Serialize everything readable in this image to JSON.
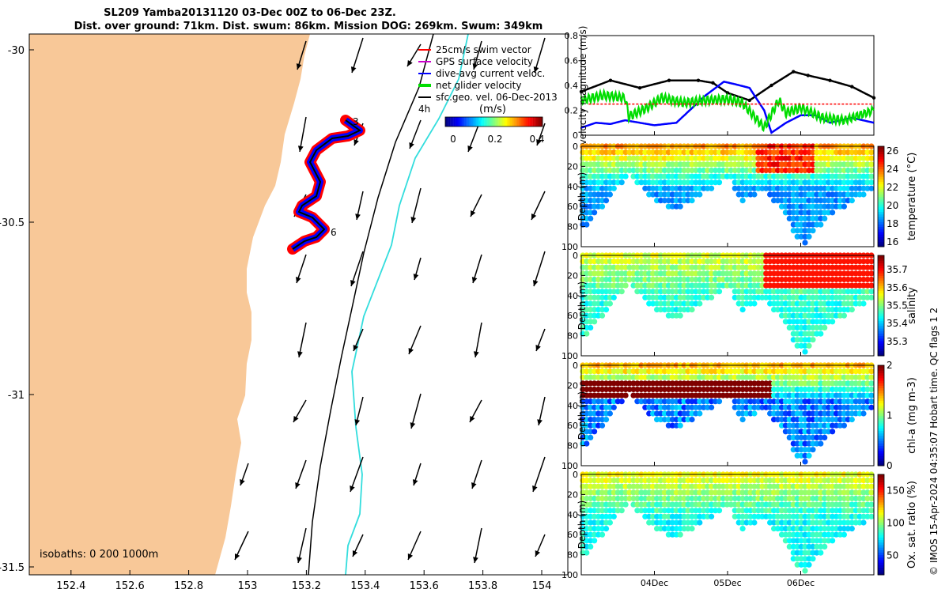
{
  "title_line1": "SL209 Yamba20131120 03-Dec 00Z to 06-Dec 23Z.",
  "title_line2": "Dist. over ground: 71km. Dist. swum: 86km. Mission DOG: 269km. Swum: 349km",
  "map": {
    "lon_ticks": [
      "152.4",
      "152.6",
      "152.8",
      "153",
      "153.2",
      "153.4",
      "153.6",
      "153.8",
      "154"
    ],
    "lat_ticks": [
      "-30",
      "-30.5",
      "-31",
      "-31.5"
    ],
    "legend": [
      "25cm/s swim vector",
      "GPS surface velocity",
      "dive-avg current veloc.",
      "net glider velocity",
      "sfc.geo. vel. 06-Dec-2013"
    ],
    "legend_colors": [
      "#ff0000",
      "#cc00cc",
      "#0000ff",
      "#00dd00",
      "#000000"
    ],
    "time_label": "4h",
    "colorbar_title": "(m/s)",
    "colorbar_ticks": [
      "0",
      "0.2",
      "0.4"
    ],
    "isobaths": "isobaths: 0   200  1000m",
    "track_labels": [
      "3",
      "6"
    ],
    "land_color": "#f8c898"
  },
  "chart_data": [
    {
      "type": "line",
      "title": "",
      "ylabel": "velocity magnitude (m/s)",
      "ylim": [
        0,
        0.8
      ],
      "yticks": [
        "0",
        "0.2",
        "0.4",
        "0.6",
        "0.8"
      ],
      "x_range_days": [
        3.0,
        7.0
      ],
      "series": [
        {
          "color": "#000000",
          "x": [
            3.0,
            3.4,
            3.8,
            4.2,
            4.6,
            4.8,
            5.0,
            5.3,
            5.6,
            5.9,
            6.1,
            6.4,
            6.7,
            7.0
          ],
          "values": [
            0.35,
            0.44,
            0.38,
            0.44,
            0.44,
            0.42,
            0.34,
            0.28,
            0.4,
            0.51,
            0.48,
            0.44,
            0.39,
            0.3
          ]
        },
        {
          "color": "#0000ff",
          "x": [
            3.0,
            3.2,
            3.4,
            3.6,
            3.8,
            4.0,
            4.3,
            4.7,
            4.95,
            5.1,
            5.3,
            5.5,
            5.6,
            5.8,
            6.0,
            6.2,
            6.4,
            6.7,
            7.0
          ],
          "values": [
            0.06,
            0.1,
            0.09,
            0.12,
            0.1,
            0.08,
            0.1,
            0.32,
            0.43,
            0.41,
            0.38,
            0.2,
            0.02,
            0.1,
            0.16,
            0.16,
            0.1,
            0.14,
            0.1
          ]
        },
        {
          "color": "#00dd00",
          "x": [
            3.0,
            3.3,
            3.6,
            3.65,
            3.9,
            4.1,
            4.4,
            4.7,
            5.0,
            5.2,
            5.5,
            5.7,
            5.8,
            6.0,
            6.3,
            6.6,
            7.0
          ],
          "values": [
            0.28,
            0.32,
            0.3,
            0.15,
            0.22,
            0.3,
            0.26,
            0.28,
            0.29,
            0.26,
            0.06,
            0.28,
            0.18,
            0.22,
            0.14,
            0.12,
            0.2
          ]
        },
        {
          "color": "#ff0000",
          "x": [
            3.1,
            7.0
          ],
          "values": [
            0.25,
            0.25
          ]
        }
      ],
      "x_tick_labels": [
        "04Dec",
        "05Dec",
        "06Dec"
      ]
    },
    {
      "type": "heatmap",
      "ylabel": "Depth (m)",
      "ylim": [
        100,
        0
      ],
      "yticks": [
        "0",
        "20",
        "40",
        "60",
        "80",
        "100"
      ],
      "colorbar_label": "temperature (°C)",
      "colorbar_ticks": [
        "16",
        "18",
        "20",
        "22",
        "24",
        "26"
      ],
      "clim": [
        15.5,
        26.5
      ],
      "surface_value": 23.5,
      "deep_value": 18.5,
      "x_tick_labels": [
        "04Dec",
        "05Dec",
        "06Dec"
      ]
    },
    {
      "type": "heatmap",
      "ylabel": "Depth (m)",
      "ylim": [
        100,
        0
      ],
      "yticks": [
        "0",
        "20",
        "40",
        "60",
        "80",
        "100"
      ],
      "colorbar_label": "salinity",
      "colorbar_ticks": [
        "35.3",
        "35.4",
        "35.5",
        "35.6",
        "35.7"
      ],
      "clim": [
        35.22,
        35.78
      ],
      "surface_value": 35.55,
      "deep_value": 35.45,
      "x_tick_labels": [
        "04Dec",
        "05Dec",
        "06Dec"
      ]
    },
    {
      "type": "heatmap",
      "ylabel": "Depth (m)",
      "ylim": [
        100,
        0
      ],
      "yticks": [
        "0",
        "20",
        "40",
        "60",
        "80",
        "100"
      ],
      "colorbar_label": "chl-a (mg m-3)",
      "colorbar_ticks": [
        "0",
        "1",
        "2"
      ],
      "clim": [
        0,
        2
      ],
      "surface_value": 1.4,
      "deep_value": 0.3,
      "x_tick_labels": [
        "04Dec",
        "05Dec",
        "06Dec"
      ]
    },
    {
      "type": "heatmap",
      "ylabel": "Depth (m)",
      "ylim": [
        100,
        0
      ],
      "yticks": [
        "0",
        "20",
        "40",
        "60",
        "80",
        "100"
      ],
      "colorbar_label": "Ox. sat. ratio (%)",
      "colorbar_ticks": [
        "50",
        "100",
        "150"
      ],
      "clim": [
        20,
        175
      ],
      "surface_value": 115,
      "deep_value": 80,
      "x_tick_labels": [
        "04Dec",
        "05Dec",
        "06Dec"
      ]
    }
  ],
  "footer_side": "© IMOS 15-Apr-2024 04:35:07 Hobart time. QC flags 1  2"
}
